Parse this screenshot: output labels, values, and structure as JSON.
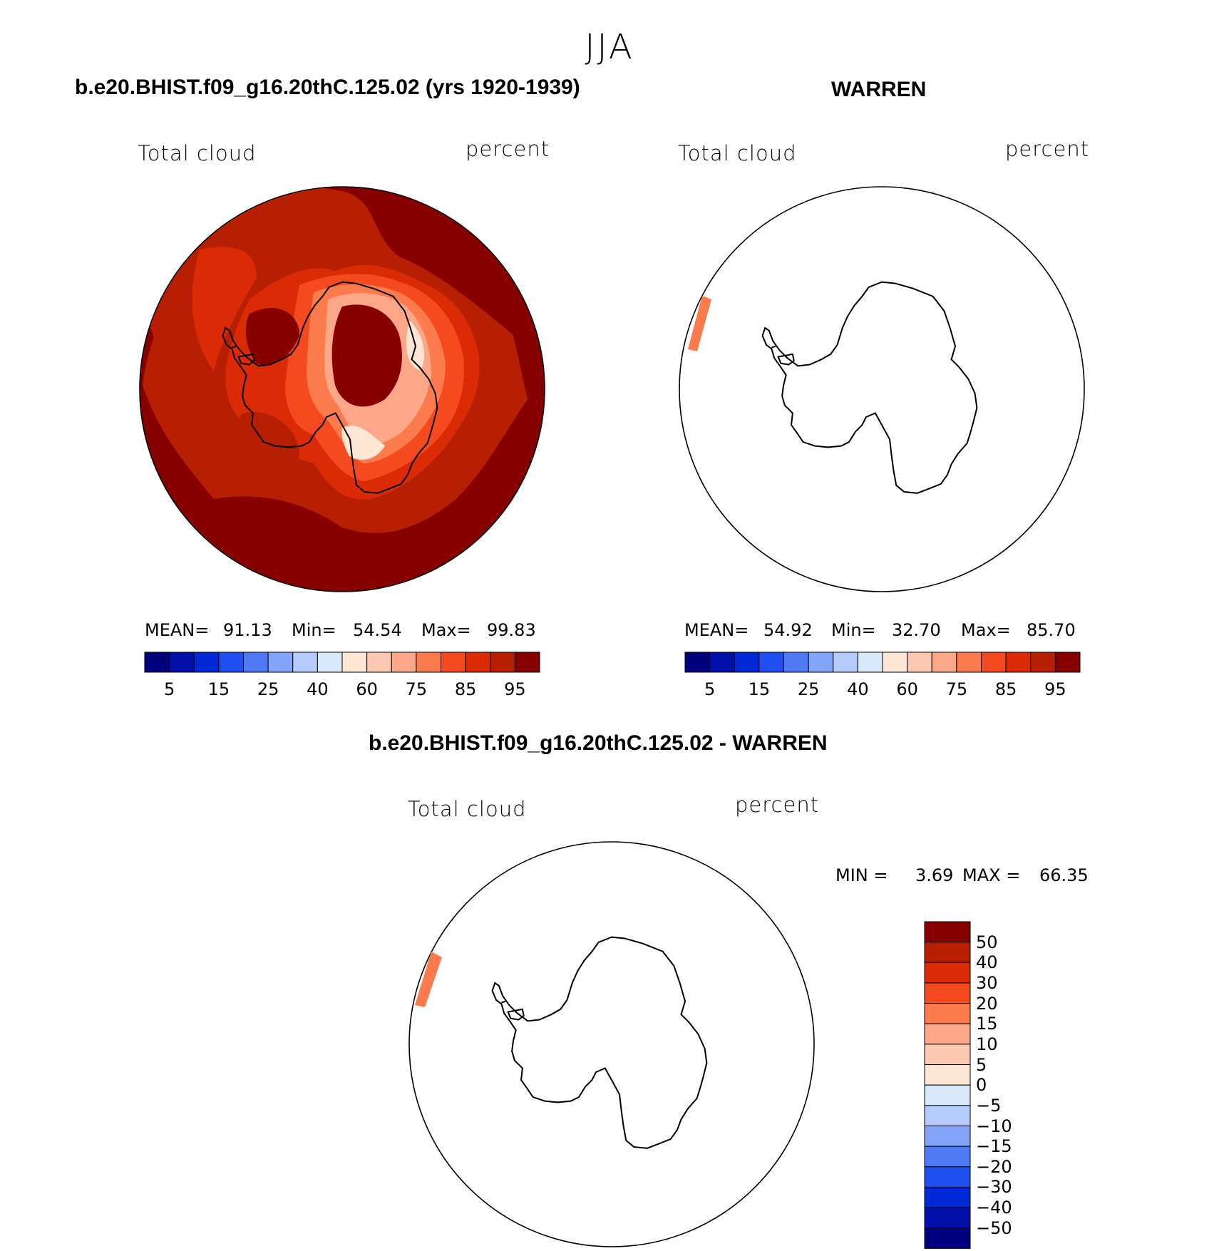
{
  "page": {
    "title": "JJA",
    "colors": {
      "land_outline": "#000000",
      "background": "#ffffff"
    }
  },
  "colorbar_abs": {
    "colors": [
      "#00007e",
      "#0010a8",
      "#0028d4",
      "#1f4ff0",
      "#4f79f5",
      "#82a4fa",
      "#b4cbfc",
      "#d9e9fc",
      "#fde6d4",
      "#fcc8b0",
      "#fca888",
      "#fb7b4c",
      "#f5491f",
      "#da2b06",
      "#b71f02",
      "#860000"
    ],
    "tick_labels": [
      "5",
      "15",
      "25",
      "40",
      "60",
      "75",
      "85",
      "95"
    ]
  },
  "colorbar_diff": {
    "colors": [
      "#860000",
      "#b71f02",
      "#da2b06",
      "#f5491f",
      "#fb7b4c",
      "#fca888",
      "#fcc8b0",
      "#fde6d4",
      "#d9e9fc",
      "#b4cbfc",
      "#82a4fa",
      "#4f79f5",
      "#1f4ff0",
      "#0028d4",
      "#0010a8",
      "#00007e"
    ],
    "tick_labels": [
      "50",
      "40",
      "30",
      "20",
      "15",
      "10",
      "5",
      "0",
      "−5",
      "−10",
      "−15",
      "−20",
      "−30",
      "−40",
      "−50"
    ]
  },
  "panels": [
    {
      "title": "b.e20.BHIST.f09_g16.20thC.125.02 (yrs 1920-1939)",
      "variable": "Total cloud",
      "units": "percent",
      "stats": {
        "mean_label": "MEAN=",
        "mean": "91.13",
        "min_label": "Min=",
        "min": "54.54",
        "max_label": "Max=",
        "max": "99.83"
      }
    },
    {
      "title": "WARREN",
      "variable": "Total cloud",
      "units": "percent",
      "stats": {
        "mean_label": "MEAN=",
        "mean": "54.92",
        "min_label": "Min=",
        "min": "32.70",
        "max_label": "Max=",
        "max": "85.70"
      }
    },
    {
      "title": "b.e20.BHIST.f09_g16.20thC.125.02 - WARREN",
      "variable": "Total cloud",
      "units": "percent",
      "stats": {
        "min_label": "MIN =",
        "min": "3.69",
        "max_label": "MAX =",
        "max": "66.35"
      }
    }
  ]
}
